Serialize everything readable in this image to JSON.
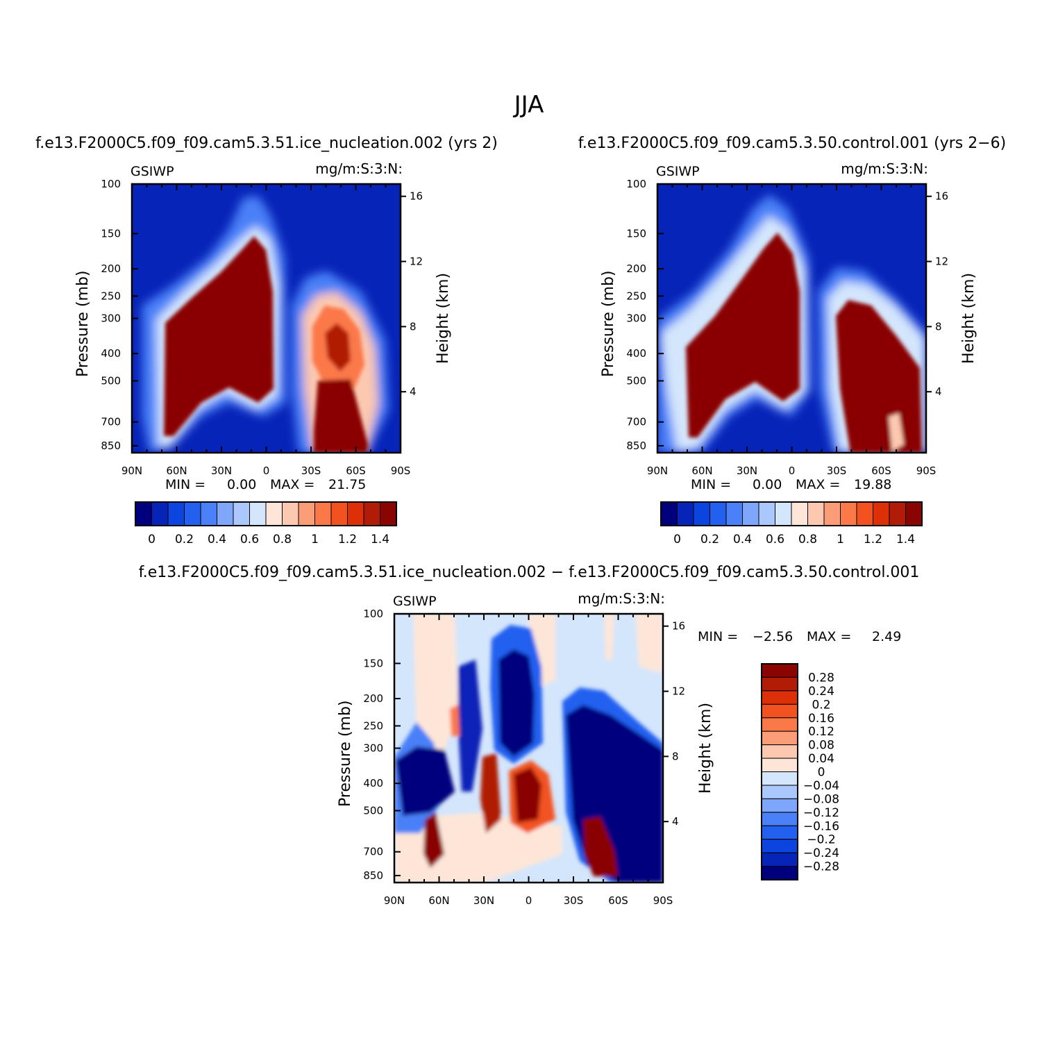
{
  "figure_title": "JJA",
  "panels": [
    {
      "title": "f.e13.F2000C5.f09_f09.cam5.3.51.ice_nucleation.002 (yrs 2)",
      "left_label": "GSIWP",
      "right_label": "mg/m:S:3:N:",
      "stats": {
        "min_label": "MIN =",
        "min": "0.00",
        "max_label": "MAX =",
        "max": "21.75"
      }
    },
    {
      "title": "f.e13.F2000C5.f09_f09.cam5.3.50.control.001 (yrs 2−6)",
      "left_label": "GSIWP",
      "right_label": "mg/m:S:3:N:",
      "stats": {
        "min_label": "MIN =",
        "min": "0.00",
        "max_label": "MAX =",
        "max": "19.88"
      }
    },
    {
      "title": "f.e13.F2000C5.f09_f09.cam5.3.51.ice_nucleation.002 − f.e13.F2000C5.f09_f09.cam5.3.50.control.001",
      "left_label": "GSIWP",
      "right_label": "mg/m:S:3:N:",
      "stats": {
        "min_label": "MIN =",
        "min": "−2.56",
        "max_label": "MAX =",
        "max": "2.49"
      }
    }
  ],
  "axes": {
    "x_ticks": [
      "90N",
      "60N",
      "30N",
      "0",
      "30S",
      "60S",
      "90S"
    ],
    "y_label": "Pressure (mb)",
    "y_ticks": [
      "100",
      "150",
      "200",
      "250",
      "300",
      "400",
      "500",
      "700",
      "850"
    ],
    "y2_label": "Height (km)",
    "y2_ticks": [
      "16",
      "12",
      "8",
      "4"
    ]
  },
  "colorbar_main": {
    "labels": [
      "0",
      "0.2",
      "0.4",
      "0.6",
      "0.8",
      "1",
      "1.2",
      "1.4"
    ],
    "colors": [
      "#00007f",
      "#0724b8",
      "#0c44e0",
      "#2460f0",
      "#4a80f8",
      "#7ea6fa",
      "#aac8fc",
      "#d4e6fc",
      "#fde6d8",
      "#fcc8b0",
      "#fb9e78",
      "#fb7848",
      "#f25220",
      "#de3008",
      "#b01c06",
      "#8a0402"
    ]
  },
  "colorbar_diff": {
    "labels": [
      "0.28",
      "0.24",
      "0.2",
      "0.16",
      "0.12",
      "0.08",
      "0.04",
      "0",
      "−0.04",
      "−0.08",
      "−0.12",
      "−0.16",
      "−0.2",
      "−0.24",
      "−0.28"
    ],
    "colors": [
      "#8a0402",
      "#b01c06",
      "#de3008",
      "#f25220",
      "#fb7848",
      "#fb9e78",
      "#fcc8b0",
      "#fde6d8",
      "#d4e6fc",
      "#aac8fc",
      "#7ea6fa",
      "#4a80f8",
      "#2460f0",
      "#0c44e0",
      "#0724b8",
      "#00007f"
    ]
  },
  "chart_data": [
    {
      "type": "heatmap",
      "title": "f.e13.F2000C5.f09_f09.cam5.3.51.ice_nucleation.002 (yrs 2)",
      "variable": "GSIWP",
      "units": "mg/m:S:3:N:",
      "xlabel": "",
      "ylabel": "Pressure (mb)",
      "y2label": "Height (km)",
      "x_ticks": [
        "90N",
        "60N",
        "30N",
        "0",
        "30S",
        "60S",
        "90S"
      ],
      "y_ticks": [
        100,
        150,
        200,
        250,
        300,
        400,
        500,
        700,
        850
      ],
      "y2_ticks": [
        16,
        12,
        8,
        4
      ],
      "min": 0.0,
      "max": 21.75,
      "contour_levels": [
        0,
        0.1,
        0.2,
        0.3,
        0.4,
        0.5,
        0.6,
        0.7,
        0.8,
        0.9,
        1.0,
        1.1,
        1.2,
        1.3,
        1.4
      ]
    },
    {
      "type": "heatmap",
      "title": "f.e13.F2000C5.f09_f09.cam5.3.50.control.001 (yrs 2−6)",
      "variable": "GSIWP",
      "units": "mg/m:S:3:N:",
      "xlabel": "",
      "ylabel": "Pressure (mb)",
      "y2label": "Height (km)",
      "x_ticks": [
        "90N",
        "60N",
        "30N",
        "0",
        "30S",
        "60S",
        "90S"
      ],
      "y_ticks": [
        100,
        150,
        200,
        250,
        300,
        400,
        500,
        700,
        850
      ],
      "y2_ticks": [
        16,
        12,
        8,
        4
      ],
      "min": 0.0,
      "max": 19.88,
      "contour_levels": [
        0,
        0.1,
        0.2,
        0.3,
        0.4,
        0.5,
        0.6,
        0.7,
        0.8,
        0.9,
        1.0,
        1.1,
        1.2,
        1.3,
        1.4
      ]
    },
    {
      "type": "heatmap",
      "title": "f.e13.F2000C5.f09_f09.cam5.3.51.ice_nucleation.002 − f.e13.F2000C5.f09_f09.cam5.3.50.control.001",
      "variable": "GSIWP",
      "units": "mg/m:S:3:N:",
      "xlabel": "",
      "ylabel": "Pressure (mb)",
      "y2label": "Height (km)",
      "x_ticks": [
        "90N",
        "60N",
        "30N",
        "0",
        "30S",
        "60S",
        "90S"
      ],
      "y_ticks": [
        100,
        150,
        200,
        250,
        300,
        400,
        500,
        700,
        850
      ],
      "y2_ticks": [
        16,
        12,
        8,
        4
      ],
      "min": -2.56,
      "max": 2.49,
      "contour_levels": [
        -0.28,
        -0.24,
        -0.2,
        -0.16,
        -0.12,
        -0.08,
        -0.04,
        0,
        0.04,
        0.08,
        0.12,
        0.16,
        0.2,
        0.24,
        0.28
      ]
    }
  ]
}
